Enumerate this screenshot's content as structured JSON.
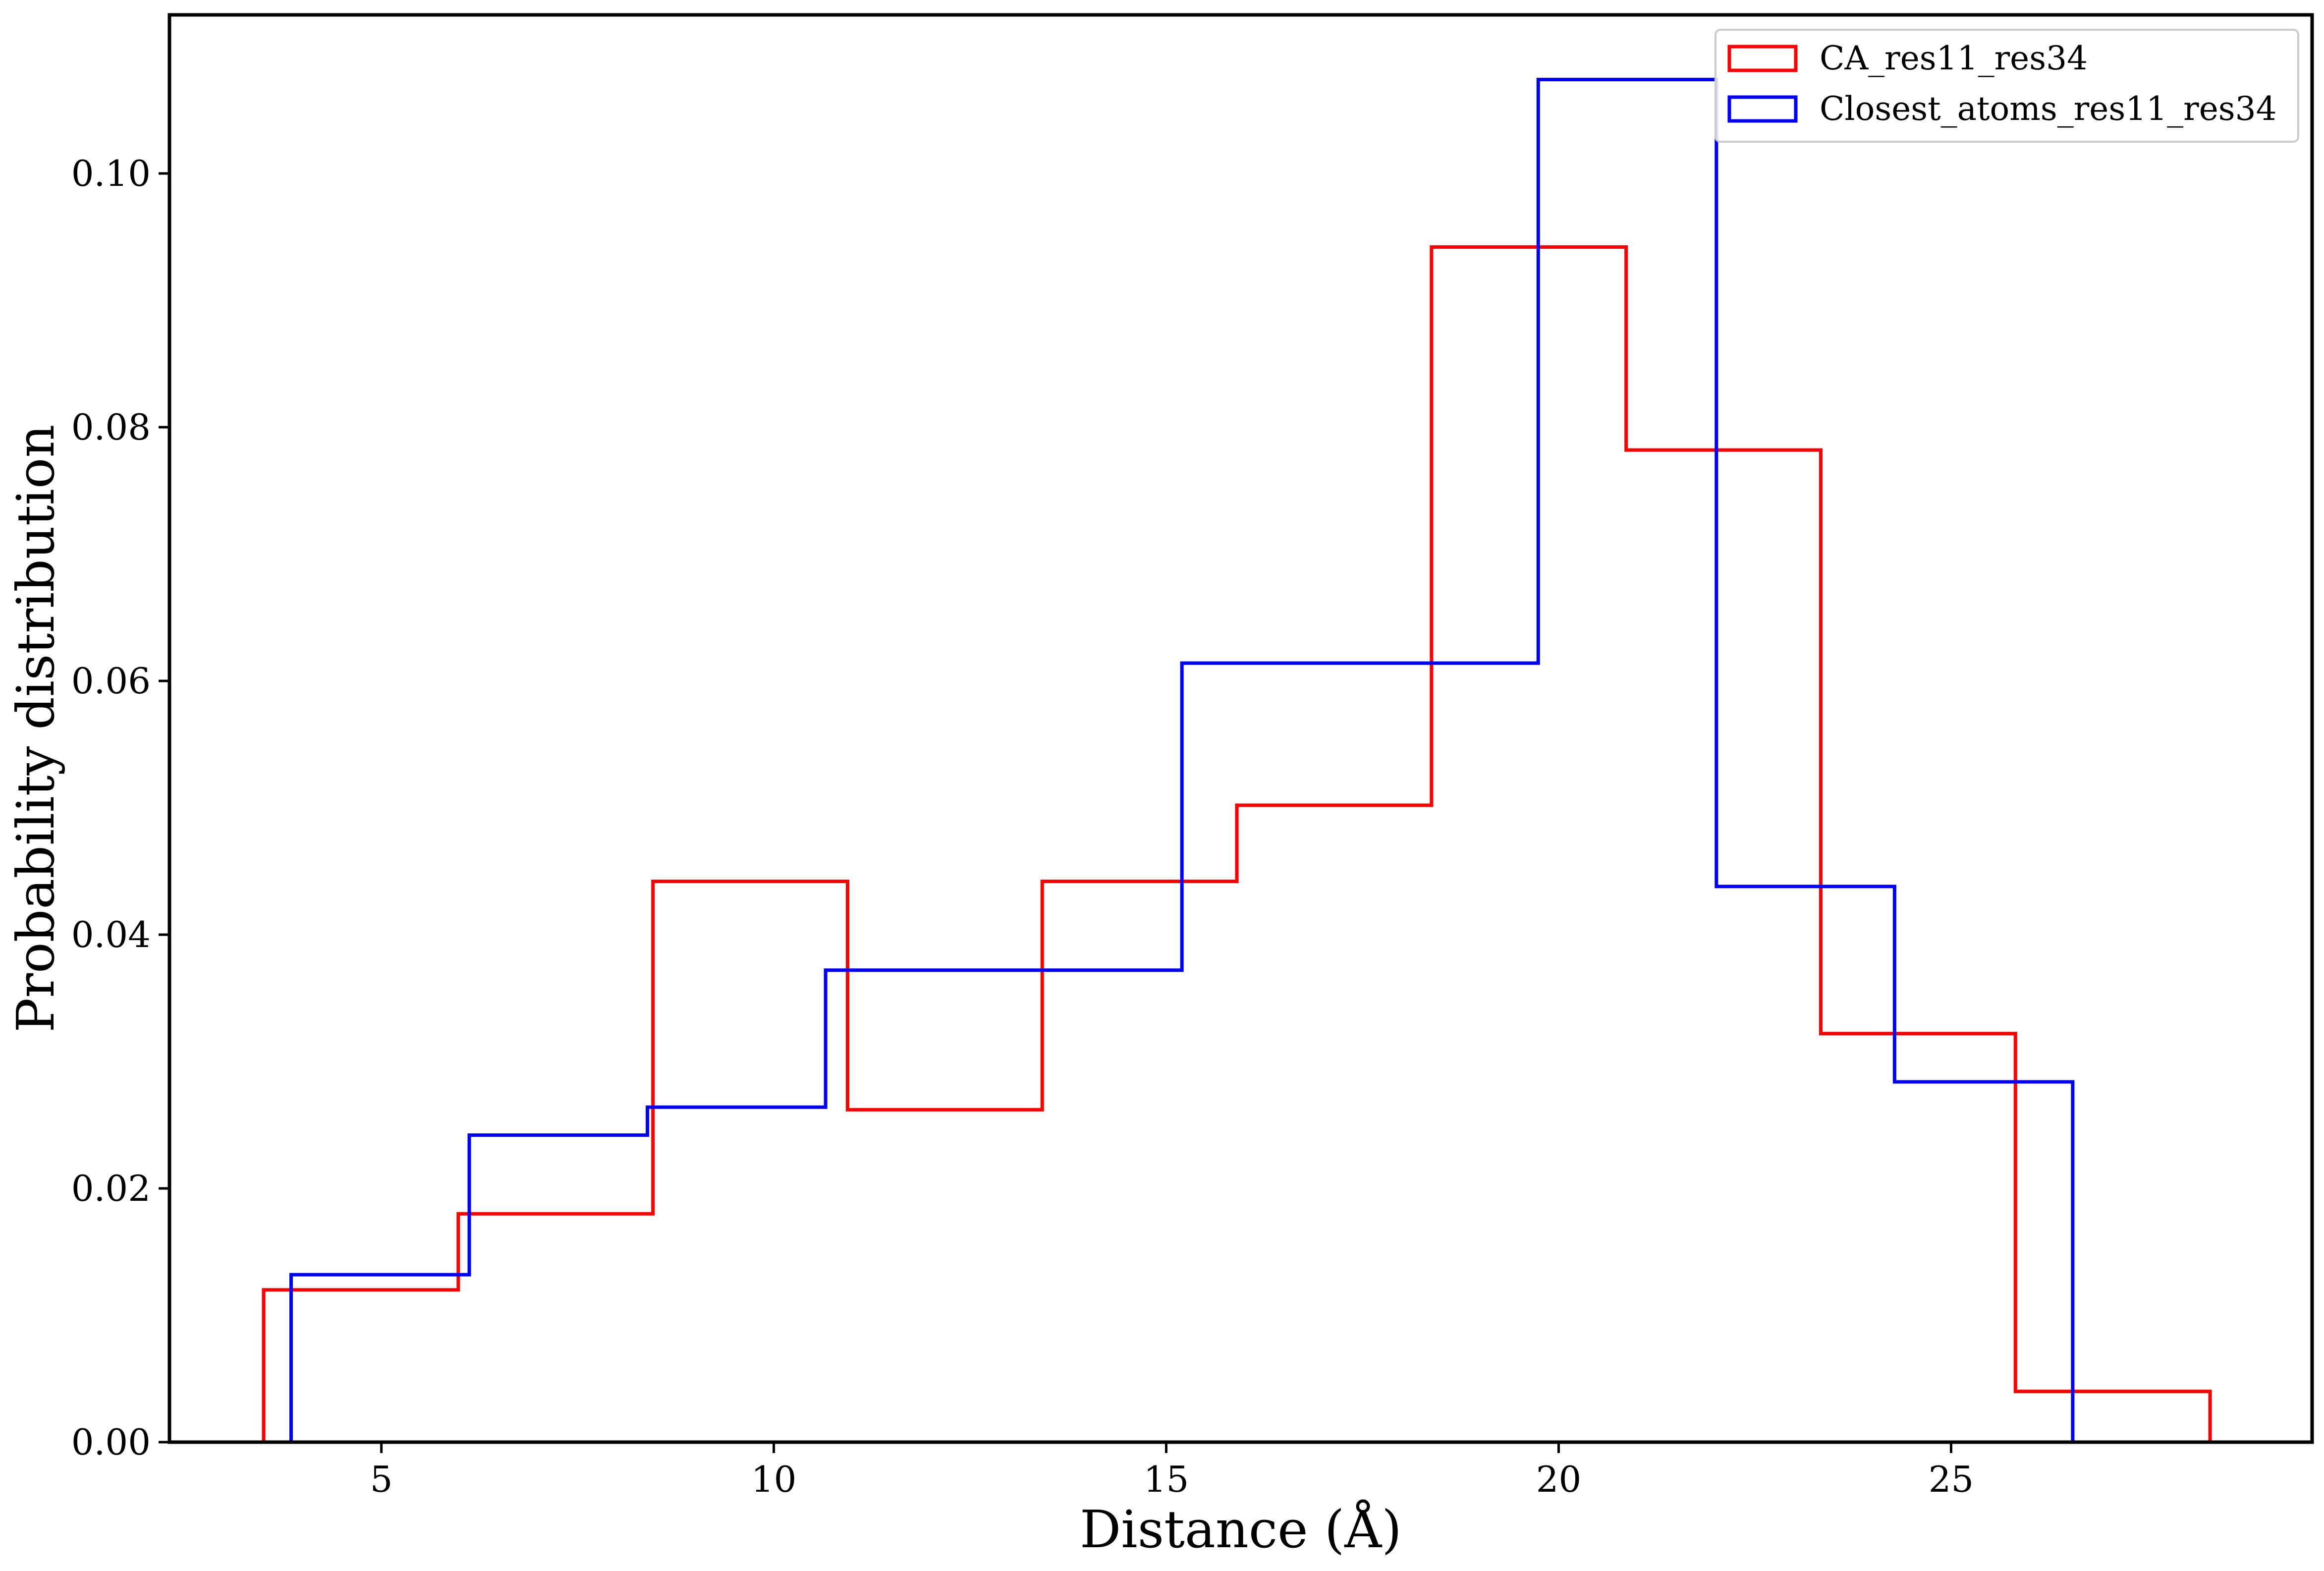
{
  "chart_data": {
    "type": "histogram-step",
    "xlabel": "Distance (Å)",
    "ylabel": "Probability distribution",
    "xlim": [
      2.3,
      29.6
    ],
    "ylim": [
      0,
      0.1125
    ],
    "xticks": [
      5,
      10,
      15,
      20,
      25
    ],
    "yticks": [
      0.0,
      0.02,
      0.04,
      0.06,
      0.08,
      0.1
    ],
    "xtick_labels": [
      "5",
      "10",
      "15",
      "20",
      "25"
    ],
    "ytick_labels": [
      "0.00",
      "0.02",
      "0.04",
      "0.06",
      "0.08",
      "0.10"
    ],
    "grid": false,
    "legend_position": "top-right",
    "series": [
      {
        "name": "CA_res11_res34",
        "color": "#ff0000",
        "bin_edges": [
          3.5,
          5.98,
          8.46,
          10.94,
          13.42,
          15.9,
          18.38,
          20.86,
          23.34,
          25.82,
          28.3
        ],
        "values": [
          0.012,
          0.018,
          0.0442,
          0.0262,
          0.0442,
          0.0502,
          0.0942,
          0.0782,
          0.0322,
          0.004
        ]
      },
      {
        "name": "Closest_atoms_res11_res34",
        "color": "#0000ff",
        "bin_edges": [
          3.85,
          6.12,
          8.39,
          10.66,
          12.93,
          15.2,
          17.47,
          19.74,
          22.01,
          24.28,
          26.55
        ],
        "values": [
          0.0132,
          0.0242,
          0.0264,
          0.0372,
          0.0372,
          0.0614,
          0.0614,
          0.1074,
          0.0438,
          0.0284
        ]
      }
    ]
  }
}
